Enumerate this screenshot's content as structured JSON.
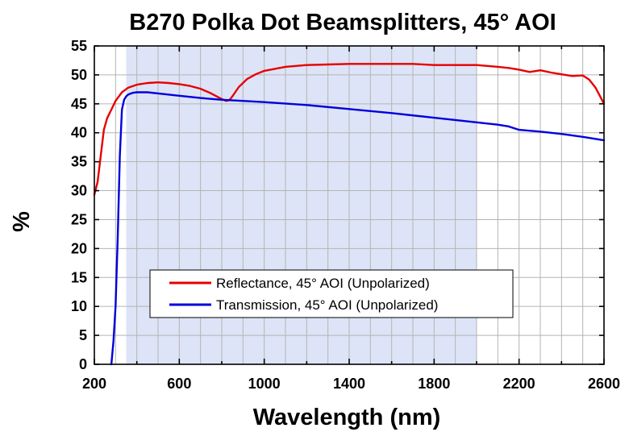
{
  "chart_data": {
    "type": "line",
    "title": "B270 Polka Dot Beamsplitters, 45° AOI",
    "xlabel": "Wavelength (nm)",
    "ylabel": "%",
    "xlim": [
      200,
      2600
    ],
    "ylim": [
      0,
      55
    ],
    "x_ticks": [
      200,
      600,
      1000,
      1400,
      1800,
      2200,
      2600
    ],
    "x_tick_labels": [
      "200",
      "600",
      "1000",
      "1400",
      "1800",
      "2200",
      "2600"
    ],
    "y_ticks": [
      0,
      5,
      10,
      15,
      20,
      25,
      30,
      35,
      40,
      45,
      50,
      55
    ],
    "y_tick_labels": [
      "0",
      "5",
      "10",
      "15",
      "20",
      "25",
      "30",
      "35",
      "40",
      "45",
      "50",
      "55"
    ],
    "grid": true,
    "shaded_region": [
      350,
      2000
    ],
    "legend_position": "center",
    "colors": {
      "shade": "#dde4f7",
      "grid": "#b4b4b4"
    },
    "series": [
      {
        "name": "Reflectance, 45° AOI (Unpolarized)",
        "color": "#e60000",
        "x": [
          200,
          215,
          230,
          245,
          260,
          280,
          300,
          330,
          360,
          400,
          450,
          500,
          550,
          600,
          650,
          700,
          750,
          790,
          820,
          835,
          850,
          880,
          920,
          960,
          1000,
          1100,
          1200,
          1300,
          1400,
          1500,
          1600,
          1700,
          1800,
          1900,
          2000,
          2100,
          2150,
          2200,
          2250,
          2300,
          2350,
          2400,
          2450,
          2500,
          2530,
          2560,
          2600
        ],
        "y": [
          29.3,
          31.5,
          36,
          40.5,
          42.5,
          44,
          45.5,
          47,
          47.8,
          48.3,
          48.6,
          48.7,
          48.6,
          48.4,
          48.1,
          47.6,
          46.8,
          46.0,
          45.5,
          45.6,
          46.3,
          47.9,
          49.3,
          50.1,
          50.7,
          51.4,
          51.7,
          51.8,
          51.9,
          51.9,
          51.9,
          51.9,
          51.7,
          51.7,
          51.7,
          51.4,
          51.2,
          50.9,
          50.5,
          50.8,
          50.4,
          50.1,
          49.8,
          49.9,
          49.2,
          47.8,
          45.0
        ]
      },
      {
        "name": "Transmission, 45° AOI (Unpolarized)",
        "color": "#0000dd",
        "x": [
          280,
          290,
          300,
          310,
          320,
          330,
          340,
          350,
          360,
          380,
          400,
          450,
          500,
          600,
          700,
          800,
          900,
          1000,
          1200,
          1400,
          1600,
          1800,
          1900,
          2000,
          2100,
          2150,
          2200,
          2300,
          2400,
          2500,
          2600
        ],
        "y": [
          0,
          4,
          10,
          22,
          36,
          44,
          45.7,
          46.3,
          46.6,
          46.9,
          47.0,
          47.0,
          46.8,
          46.4,
          46.0,
          45.7,
          45.5,
          45.3,
          44.8,
          44.1,
          43.4,
          42.6,
          42.2,
          41.8,
          41.4,
          41.1,
          40.5,
          40.2,
          39.8,
          39.3,
          38.7
        ]
      }
    ]
  }
}
